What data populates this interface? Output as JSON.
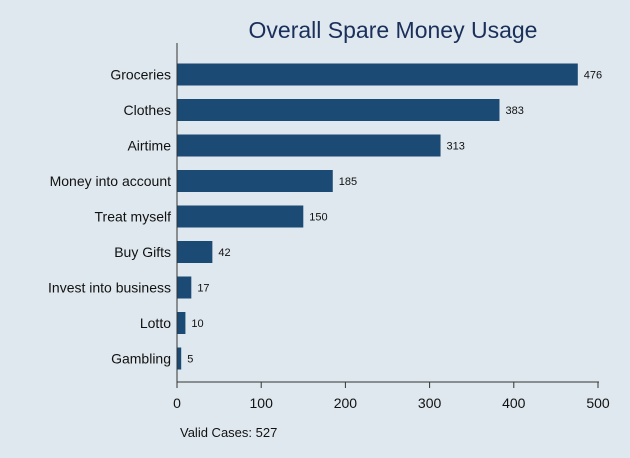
{
  "chart_data": {
    "type": "bar",
    "orientation": "horizontal",
    "title": "Overall Spare Money Usage",
    "categories": [
      "Groceries",
      "Clothes",
      "Airtime",
      "Money into account",
      "Treat myself",
      "Buy Gifts",
      "Invest into business",
      "Lotto",
      "Gambling"
    ],
    "values": [
      476,
      383,
      313,
      185,
      150,
      42,
      17,
      10,
      5
    ],
    "xlim": [
      0,
      500
    ],
    "xticks": [
      0,
      100,
      200,
      300,
      400,
      500
    ],
    "xlabel": "",
    "ylabel": "",
    "grid": false,
    "bar_color": "#1b4a74",
    "note": "Valid Cases: 527"
  }
}
